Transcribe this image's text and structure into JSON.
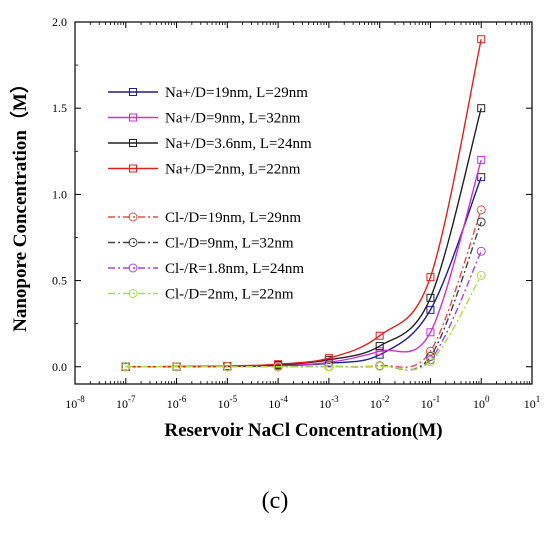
{
  "figure": {
    "panel_label": "(c)"
  },
  "chart_data": {
    "type": "line",
    "xscale": "log",
    "xlabel": "Reservoir NaCl Concentration(M)",
    "ylabel": "Nanopore  Concentration（M）",
    "xlim": [
      1e-08,
      10
    ],
    "ylim": [
      -0.1,
      2.0
    ],
    "xticks": [
      {
        "value": 1e-08,
        "base": "10",
        "exp": "-8"
      },
      {
        "value": 1e-07,
        "base": "10",
        "exp": "-7"
      },
      {
        "value": 1e-06,
        "base": "10",
        "exp": "-6"
      },
      {
        "value": 1e-05,
        "base": "10",
        "exp": "-5"
      },
      {
        "value": 0.0001,
        "base": "10",
        "exp": "-4"
      },
      {
        "value": 0.001,
        "base": "10",
        "exp": "-3"
      },
      {
        "value": 0.01,
        "base": "10",
        "exp": "-2"
      },
      {
        "value": 0.1,
        "base": "10",
        "exp": "-1"
      },
      {
        "value": 1,
        "base": "10",
        "exp": "0"
      },
      {
        "value": 10,
        "base": "10",
        "exp": "1"
      }
    ],
    "yticks": [
      {
        "value": 0.0,
        "label": "0.0"
      },
      {
        "value": 0.5,
        "label": "0.5"
      },
      {
        "value": 1.0,
        "label": "1.0"
      },
      {
        "value": 1.5,
        "label": "1.5"
      },
      {
        "value": 2.0,
        "label": "2.0"
      }
    ],
    "grid": false,
    "legend_position": "upper-left",
    "x": [
      1e-07,
      1e-06,
      1e-05,
      0.0001,
      0.001,
      0.01,
      0.1,
      1
    ],
    "series": [
      {
        "name": "Na+/D=19nm,  L=29nm",
        "color": "#1f1f8f",
        "marker": "square",
        "dash": "solid",
        "values": [
          0.0,
          0.001,
          0.002,
          0.006,
          0.02,
          0.07,
          0.33,
          1.1
        ]
      },
      {
        "name": "Na+/D=9nm,  L=32nm",
        "color": "#cc33cc",
        "marker": "square",
        "dash": "solid",
        "values": [
          0.0,
          0.001,
          0.002,
          0.007,
          0.025,
          0.09,
          0.2,
          1.2
        ]
      },
      {
        "name": "Na+/D=3.6nm,  L=24nm",
        "color": "#222222",
        "marker": "square",
        "dash": "solid",
        "values": [
          0.0,
          0.001,
          0.003,
          0.01,
          0.04,
          0.12,
          0.4,
          1.5
        ]
      },
      {
        "name": "Na+/D=2nm,  L=22nm",
        "color": "#e02020",
        "marker": "square",
        "dash": "solid",
        "values": [
          0.0,
          0.001,
          0.004,
          0.015,
          0.05,
          0.18,
          0.52,
          1.9
        ]
      },
      {
        "name": "Cl-/D=19nm,  L=29nm",
        "color": "#e05050",
        "marker": "circle",
        "dash": "dashdot",
        "values": [
          0.0,
          0.0,
          0.0,
          0.0,
          0.001,
          0.006,
          0.09,
          0.91
        ]
      },
      {
        "name": "Cl-/D=9nm,  L=32nm",
        "color": "#444444",
        "marker": "circle",
        "dash": "dashdot",
        "values": [
          0.0,
          0.0,
          0.0,
          0.0,
          0.001,
          0.005,
          0.06,
          0.84
        ]
      },
      {
        "name": "Cl-/R=1.8nm,  L=24nm",
        "color": "#aa44dd",
        "marker": "circle",
        "dash": "dashdot",
        "values": [
          0.0,
          0.0,
          0.0,
          0.0,
          0.001,
          0.004,
          0.04,
          0.67
        ]
      },
      {
        "name": "Cl-/D=2nm, L=22nm",
        "color": "#aadd44",
        "marker": "circle",
        "dash": "dashdot",
        "values": [
          0.0,
          0.0,
          0.0,
          0.0,
          0.0,
          0.003,
          0.03,
          0.53
        ]
      }
    ]
  }
}
